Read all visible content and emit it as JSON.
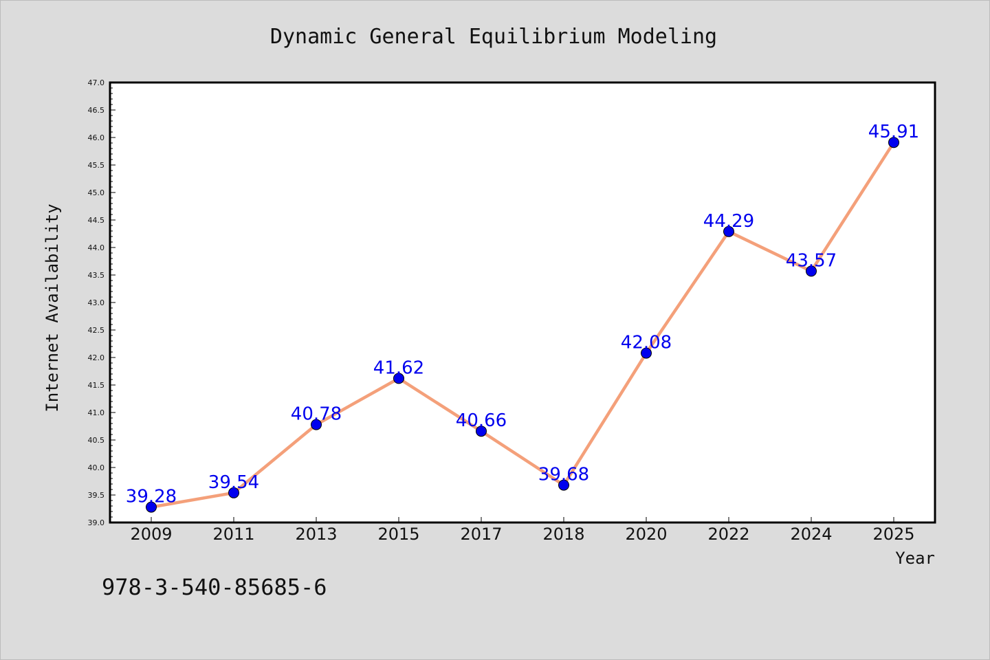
{
  "chart_data": {
    "type": "line",
    "title": "Dynamic General Equilibrium Modeling",
    "xlabel": "Year",
    "ylabel": "Internet Availability",
    "categories": [
      "2009",
      "2011",
      "2013",
      "2015",
      "2017",
      "2018",
      "2020",
      "2022",
      "2024",
      "2025"
    ],
    "series": [
      {
        "values": [
          39.28,
          39.54,
          40.78,
          41.62,
          40.66,
          39.68,
          42.08,
          44.29,
          43.57,
          45.91
        ]
      }
    ],
    "data_labels": [
      "39.28",
      "39.54",
      "40.78",
      "41.62",
      "40.66",
      "39.68",
      "42.08",
      "44.29",
      "43.57",
      "45.91"
    ],
    "ylim": [
      39.0,
      47.0
    ],
    "yticks": [
      "39.0",
      "39.5",
      "40.0",
      "40.5",
      "41.0",
      "41.5",
      "42.0",
      "42.5",
      "43.0",
      "43.5",
      "44.0",
      "44.5",
      "45.0",
      "45.5",
      "46.0",
      "46.5",
      "47.0"
    ],
    "grid": false,
    "legend": "none"
  },
  "annotation": "978-3-540-85685-6",
  "colors": {
    "background": "#dcdcdc",
    "plot_background": "#ffffff",
    "line": "#f4a07a",
    "marker": "#0000ee",
    "data_label": "#0000ee"
  }
}
